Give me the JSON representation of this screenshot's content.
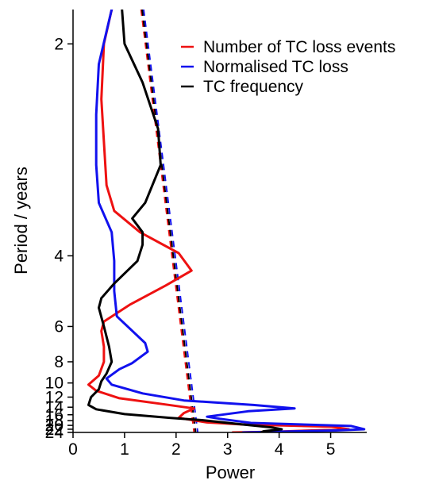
{
  "chart_data": {
    "type": "line",
    "orientation": "horizontal-power-vs-period",
    "xlabel": "Power",
    "ylabel": "Period / years",
    "xlim": [
      0,
      5.7
    ],
    "ylim": [
      1.85,
      24
    ],
    "y_scale": "reciprocal",
    "xticks": [
      0,
      1,
      2,
      3,
      4,
      5
    ],
    "yticks": [
      2,
      4,
      6,
      8,
      10,
      12,
      14,
      16,
      18,
      20,
      22,
      24
    ],
    "grid": false,
    "legend_position": "top-right",
    "series": [
      {
        "name": "Number of TC loss events",
        "color": "#ee1111",
        "points": [
          [
            0.75,
            1.85
          ],
          [
            0.6,
            2.0
          ],
          [
            0.55,
            2.3
          ],
          [
            0.6,
            2.6
          ],
          [
            0.65,
            3.0
          ],
          [
            0.8,
            3.3
          ],
          [
            1.3,
            3.6
          ],
          [
            2.05,
            3.95
          ],
          [
            2.3,
            4.3
          ],
          [
            1.8,
            4.65
          ],
          [
            1.1,
            5.2
          ],
          [
            0.6,
            5.8
          ],
          [
            0.55,
            6.2
          ],
          [
            0.6,
            7.0
          ],
          [
            0.6,
            8.0
          ],
          [
            0.5,
            9.2
          ],
          [
            0.3,
            10.2
          ],
          [
            0.45,
            11.0
          ],
          [
            0.9,
            12.2
          ],
          [
            1.8,
            13.4
          ],
          [
            2.35,
            14.3
          ],
          [
            2.15,
            15.5
          ],
          [
            2.05,
            17.0
          ],
          [
            2.6,
            18.7
          ],
          [
            3.3,
            19.6
          ],
          [
            5.0,
            20.6
          ],
          [
            5.35,
            22.0
          ],
          [
            3.9,
            23.5
          ],
          [
            3.1,
            24.0
          ]
        ]
      },
      {
        "name": "Normalised TC loss",
        "color": "#1111ee",
        "points": [
          [
            0.75,
            1.85
          ],
          [
            0.5,
            2.1
          ],
          [
            0.45,
            2.4
          ],
          [
            0.45,
            2.8
          ],
          [
            0.5,
            3.2
          ],
          [
            0.75,
            3.6
          ],
          [
            0.8,
            4.1
          ],
          [
            0.8,
            4.8
          ],
          [
            0.85,
            5.6
          ],
          [
            1.4,
            6.8
          ],
          [
            1.45,
            7.3
          ],
          [
            1.15,
            8.1
          ],
          [
            0.9,
            8.6
          ],
          [
            0.65,
            9.5
          ],
          [
            0.75,
            10.2
          ],
          [
            1.35,
            11.4
          ],
          [
            2.15,
            12.6
          ],
          [
            3.5,
            13.5
          ],
          [
            4.3,
            14.3
          ],
          [
            3.4,
            15.0
          ],
          [
            2.6,
            16.6
          ],
          [
            2.85,
            17.3
          ],
          [
            3.45,
            18.9
          ],
          [
            5.4,
            20.3
          ],
          [
            5.65,
            22.0
          ],
          [
            5.1,
            22.7
          ],
          [
            3.3,
            24.0
          ]
        ]
      },
      {
        "name": "TC frequency",
        "color": "#000000",
        "points": [
          [
            0.95,
            1.85
          ],
          [
            1.0,
            2.0
          ],
          [
            1.35,
            2.2
          ],
          [
            1.65,
            2.5
          ],
          [
            1.7,
            2.8
          ],
          [
            1.4,
            3.2
          ],
          [
            1.15,
            3.4
          ],
          [
            1.35,
            3.6
          ],
          [
            1.35,
            3.8
          ],
          [
            1.25,
            4.1
          ],
          [
            0.8,
            4.6
          ],
          [
            0.55,
            5.0
          ],
          [
            0.5,
            5.3
          ],
          [
            0.6,
            6.0
          ],
          [
            0.7,
            7.0
          ],
          [
            0.75,
            8.0
          ],
          [
            0.65,
            9.0
          ],
          [
            0.55,
            9.8
          ],
          [
            0.5,
            10.8
          ],
          [
            0.35,
            12.0
          ],
          [
            0.3,
            13.5
          ],
          [
            0.45,
            14.5
          ],
          [
            1.0,
            15.8
          ],
          [
            1.9,
            17.0
          ],
          [
            2.5,
            17.8
          ],
          [
            3.3,
            19.6
          ],
          [
            3.85,
            21.0
          ],
          [
            4.05,
            22.0
          ],
          [
            3.7,
            23.2
          ],
          [
            3.65,
            24.0
          ]
        ]
      }
    ],
    "significance_lines": [
      {
        "series": "Number of TC loss events",
        "color": "#ee1111",
        "points": [
          [
            1.32,
            1.85
          ],
          [
            2.35,
            24.0
          ]
        ]
      },
      {
        "series": "Normalised TC loss",
        "color": "#1111ee",
        "points": [
          [
            1.37,
            1.85
          ],
          [
            2.42,
            24.0
          ]
        ]
      },
      {
        "series": "TC frequency",
        "color": "#000000",
        "points": [
          [
            1.34,
            1.85
          ],
          [
            2.38,
            24.0
          ]
        ]
      }
    ]
  }
}
